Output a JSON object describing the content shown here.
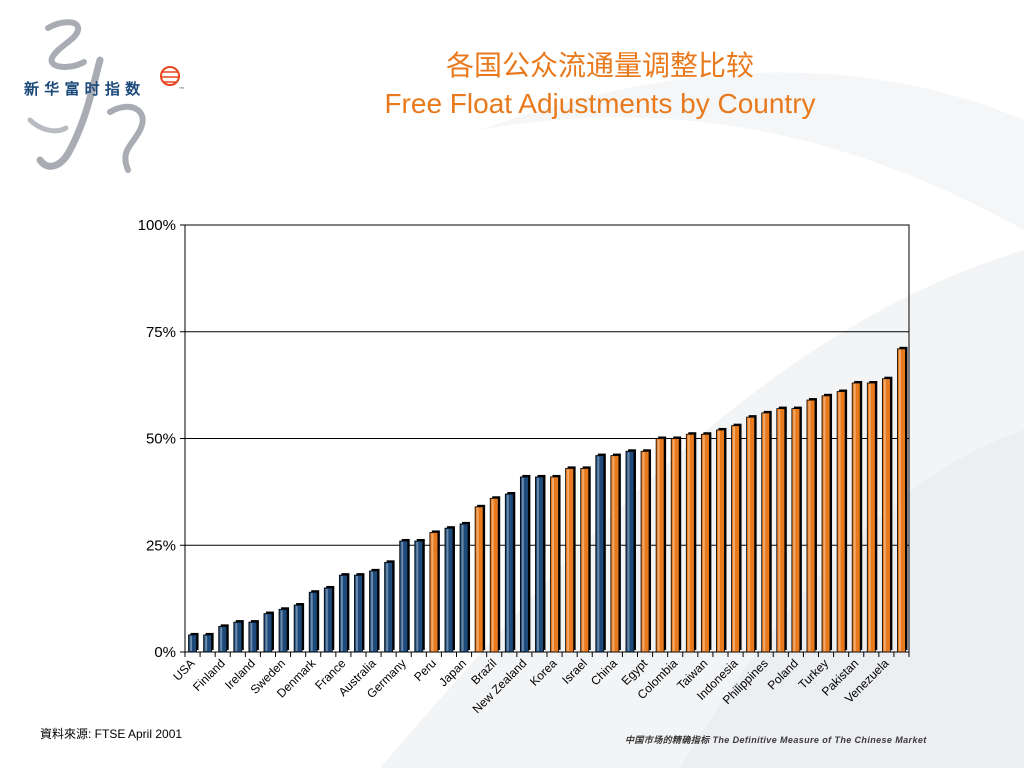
{
  "logo": {
    "text": "新 华 富 时 指 数",
    "mark": "™"
  },
  "title": {
    "cn": "各国公众流通量调整比较",
    "en": "Free Float Adjustments by Country"
  },
  "source": "資料來源: FTSE April 2001",
  "tagline": "中国市场的精确指标 The Definitive Measure of The Chinese Market",
  "colors": {
    "blue": "#1d4a7a",
    "orange": "#e87a1d",
    "grid": "#000000",
    "title": "#e87a1d"
  },
  "chart_data": {
    "type": "bar",
    "yticks": [
      "0%",
      "25%",
      "50%",
      "75%",
      "100%"
    ],
    "ylim": [
      0,
      100
    ],
    "grid": true,
    "values": [
      4,
      4,
      6,
      7,
      7,
      9,
      10,
      11,
      14,
      15,
      18,
      18,
      19,
      21,
      26,
      26,
      28,
      29,
      30,
      34,
      36,
      37,
      41,
      41,
      41,
      43,
      43,
      46,
      46,
      47,
      47,
      50,
      50,
      51,
      51,
      52,
      53,
      55,
      56,
      57,
      57,
      59,
      60,
      61,
      63,
      63,
      64,
      71
    ],
    "bar_colors": [
      "blue",
      "blue",
      "blue",
      "blue",
      "blue",
      "blue",
      "blue",
      "blue",
      "blue",
      "blue",
      "blue",
      "blue",
      "blue",
      "blue",
      "blue",
      "blue",
      "orange",
      "blue",
      "blue",
      "orange",
      "orange",
      "blue",
      "blue",
      "blue",
      "orange",
      "orange",
      "orange",
      "blue",
      "orange",
      "blue",
      "orange",
      "orange",
      "orange",
      "orange",
      "orange",
      "orange",
      "orange",
      "orange",
      "orange",
      "orange",
      "orange",
      "orange",
      "orange",
      "orange",
      "orange",
      "orange",
      "orange",
      "orange"
    ],
    "x_labels": [
      "USA",
      "Finland",
      "Ireland",
      "Sweden",
      "Denmark",
      "France",
      "Australia",
      "Germany",
      "Peru",
      "Japan",
      "Brazil",
      "New Zealand",
      "Korea",
      "Israel",
      "China",
      "Egypt",
      "Colombia",
      "Taiwan",
      "Indonesia",
      "Philippines",
      "Poland",
      "Turkey",
      "Pakistan",
      "Venezuela"
    ]
  }
}
